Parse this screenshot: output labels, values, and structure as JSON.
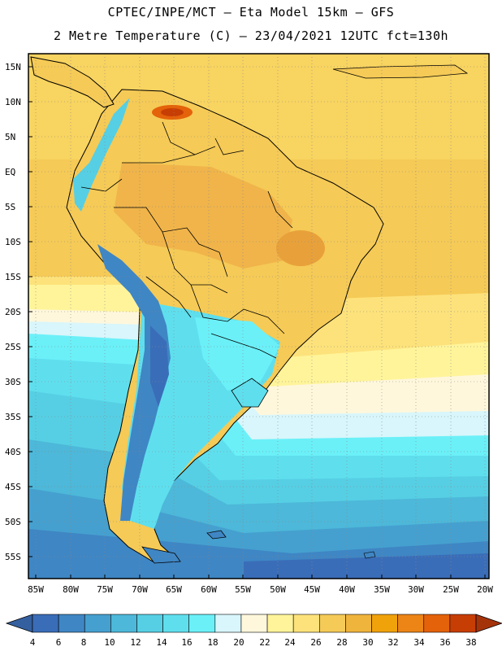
{
  "header": {
    "line1": "CPTEC/INPE/MCT –  Eta Model 15km – GFS",
    "line2": "2 Metre Temperature (C) – 23/04/2021 12UTC fct=130h"
  },
  "lat_labels": [
    "15N",
    "10N",
    "5N",
    "EQ",
    "5S",
    "10S",
    "15S",
    "20S",
    "25S",
    "30S",
    "35S",
    "40S",
    "45S",
    "50S",
    "55S"
  ],
  "lon_labels": [
    "85W",
    "80W",
    "75W",
    "70W",
    "65W",
    "60W",
    "55W",
    "50W",
    "45W",
    "40W",
    "35W",
    "30W",
    "25W",
    "20W"
  ],
  "colorbar": {
    "labels": [
      "4",
      "6",
      "8",
      "10",
      "12",
      "14",
      "16",
      "18",
      "20",
      "22",
      "24",
      "26",
      "28",
      "30",
      "32",
      "34",
      "36",
      "38"
    ],
    "colors": [
      "#3a6db8",
      "#3f86c4",
      "#45a0cf",
      "#4db8d9",
      "#56cfe4",
      "#5fdfee",
      "#6bf0f8",
      "#d8f6fb",
      "#fff7dc",
      "#fff49a",
      "#fde27b",
      "#f5ca56",
      "#efb43c",
      "#f0a20b",
      "#ec8416",
      "#e4620a",
      "#c73e04"
    ]
  },
  "icons": {
    "left_arrow": "colorbar-low-arrow",
    "right_arrow": "colorbar-high-arrow"
  }
}
